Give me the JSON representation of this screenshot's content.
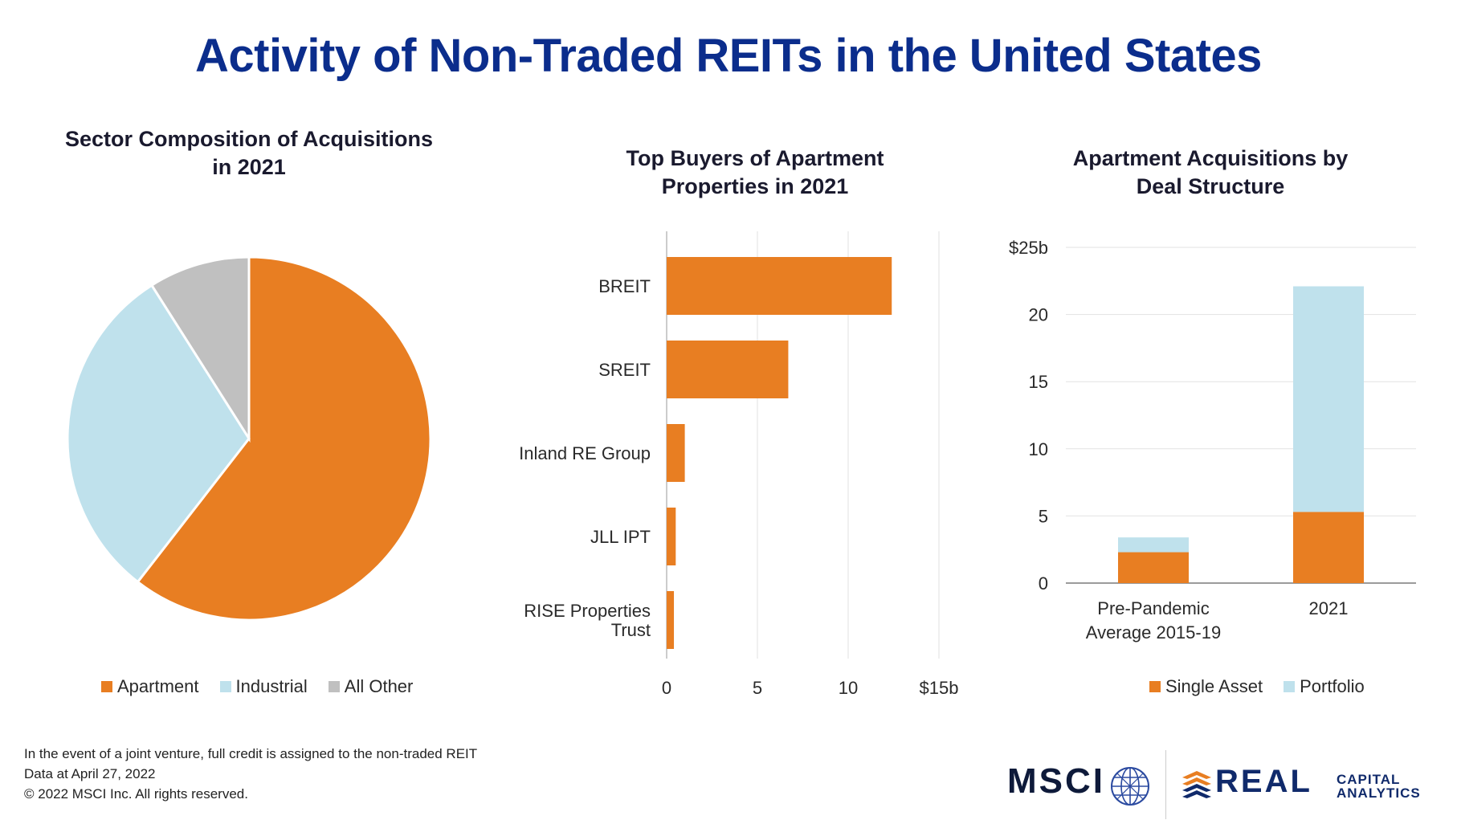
{
  "header": {
    "title": "Activity of Non-Traded REITs in the United States"
  },
  "colors": {
    "orange": "#e87e22",
    "light_blue": "#bfe1ec",
    "gray": "#c0c0c0",
    "title_blue": "#0b2d8c"
  },
  "chart_data": [
    {
      "type": "pie",
      "title": "Sector Composition of Acquisitions in 2021",
      "title_lines": [
        "Sector Composition of Acquisitions",
        "in 2021"
      ],
      "categories": [
        "Apartment",
        "Industrial",
        "All Other"
      ],
      "values": [
        60.5,
        30.5,
        9.0
      ],
      "colors": [
        "#e87e22",
        "#bfe1ec",
        "#c0c0c0"
      ],
      "legend": [
        "Apartment",
        "Industrial",
        "All Other"
      ]
    },
    {
      "type": "bar",
      "orientation": "horizontal",
      "title": "Top Buyers of Apartment Properties in 2021",
      "title_lines": [
        "Top Buyers of Apartment",
        "Properties in 2021"
      ],
      "categories": [
        "BREIT",
        "SREIT",
        "Inland RE Group",
        "JLL IPT",
        "RISE Properties Trust"
      ],
      "category_lines": [
        [
          "BREIT"
        ],
        [
          "SREIT"
        ],
        [
          "Inland RE Group"
        ],
        [
          "JLL IPT"
        ],
        [
          "RISE Properties",
          "Trust"
        ]
      ],
      "values": [
        12.4,
        6.7,
        1.0,
        0.5,
        0.4
      ],
      "xlim": [
        0,
        15
      ],
      "xticks": [
        0,
        5,
        10,
        15
      ],
      "xtick_labels": [
        "0",
        "5",
        "10",
        "$15b"
      ],
      "color": "#e87e22"
    },
    {
      "type": "bar",
      "stacked": true,
      "title": "Apartment Acquisitions by Deal Structure",
      "title_lines": [
        "Apartment Acquisitions by",
        "Deal Structure"
      ],
      "categories": [
        "Pre-Pandemic Average 2015-19",
        "2021"
      ],
      "category_lines": [
        [
          "Pre-Pandemic",
          "Average 2015-19"
        ],
        [
          "2021"
        ]
      ],
      "series": [
        {
          "name": "Single Asset",
          "values": [
            2.3,
            5.3
          ],
          "color": "#e87e22"
        },
        {
          "name": "Portfolio",
          "values": [
            1.1,
            16.8
          ],
          "color": "#bfe1ec"
        }
      ],
      "ylim": [
        0,
        25
      ],
      "yticks": [
        0,
        5,
        10,
        15,
        20,
        25
      ],
      "ytick_labels": [
        "0",
        "5",
        "10",
        "15",
        "20",
        "$25b"
      ]
    }
  ],
  "footer": {
    "lines": [
      "In the event of a joint venture, full credit is assigned to the non-traded REIT",
      "Data at April 27, 2022",
      "© 2022 MSCI Inc. All rights reserved."
    ]
  },
  "logos": {
    "msci": "MSCI",
    "msci_icon": "globe-icon",
    "rca_main": "REAL",
    "rca_sub_1": "CAPITAL",
    "rca_sub_2": "ANALYTICS",
    "rca_icon": "stacked-chevron-icon"
  }
}
